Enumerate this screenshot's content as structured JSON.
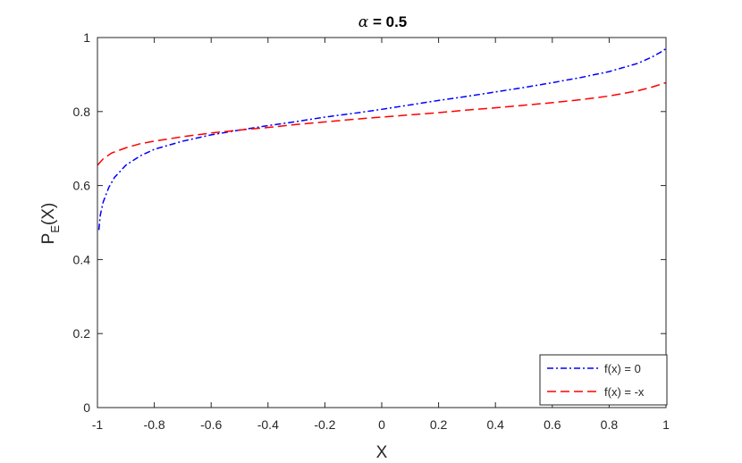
{
  "chart_data": {
    "type": "line",
    "title": {
      "symbol": "α",
      "rest": " = 0.5"
    },
    "xlabel": "X",
    "ylabel": {
      "main": "P",
      "subscript": "E",
      "suffix": "(X)"
    },
    "xlim": [
      -1,
      1
    ],
    "ylim": [
      0,
      1
    ],
    "xticks": [
      -1,
      -0.8,
      -0.6,
      -0.4,
      -0.2,
      0,
      0.2,
      0.4,
      0.6,
      0.8,
      1
    ],
    "xtick_labels": [
      "-1",
      "-0.8",
      "-0.6",
      "-0.4",
      "-0.2",
      "0",
      "0.2",
      "0.4",
      "0.6",
      "0.8",
      "1"
    ],
    "yticks": [
      0,
      0.2,
      0.4,
      0.6,
      0.8,
      1
    ],
    "ytick_labels": [
      "0",
      "0.2",
      "0.4",
      "0.6",
      "0.8",
      "1"
    ],
    "grid": false,
    "legend_position": "bottom-right",
    "series": [
      {
        "name": "f(x) = 0",
        "color": "#0000ff",
        "style": "dash-dot",
        "x": [
          -0.995,
          -0.99,
          -0.98,
          -0.96,
          -0.94,
          -0.9,
          -0.85,
          -0.8,
          -0.7,
          -0.6,
          -0.5,
          -0.4,
          -0.3,
          -0.2,
          -0.1,
          0,
          0.1,
          0.2,
          0.3,
          0.4,
          0.5,
          0.6,
          0.7,
          0.8,
          0.9,
          0.95,
          0.98,
          1.0
        ],
        "y": [
          0.48,
          0.52,
          0.555,
          0.595,
          0.622,
          0.655,
          0.68,
          0.698,
          0.72,
          0.737,
          0.75,
          0.762,
          0.773,
          0.785,
          0.795,
          0.806,
          0.818,
          0.83,
          0.841,
          0.853,
          0.865,
          0.878,
          0.892,
          0.908,
          0.93,
          0.947,
          0.96,
          0.97
        ]
      },
      {
        "name": "f(x) = -x",
        "color": "#ff0000",
        "style": "dashed",
        "x": [
          -1.0,
          -0.98,
          -0.95,
          -0.9,
          -0.85,
          -0.8,
          -0.7,
          -0.6,
          -0.5,
          -0.4,
          -0.3,
          -0.2,
          -0.1,
          0,
          0.1,
          0.2,
          0.3,
          0.4,
          0.5,
          0.6,
          0.7,
          0.8,
          0.9,
          0.95,
          1.0
        ],
        "y": [
          0.655,
          0.672,
          0.688,
          0.702,
          0.713,
          0.72,
          0.732,
          0.742,
          0.75,
          0.757,
          0.765,
          0.772,
          0.779,
          0.785,
          0.791,
          0.797,
          0.804,
          0.81,
          0.817,
          0.824,
          0.832,
          0.842,
          0.856,
          0.866,
          0.878
        ]
      }
    ]
  }
}
